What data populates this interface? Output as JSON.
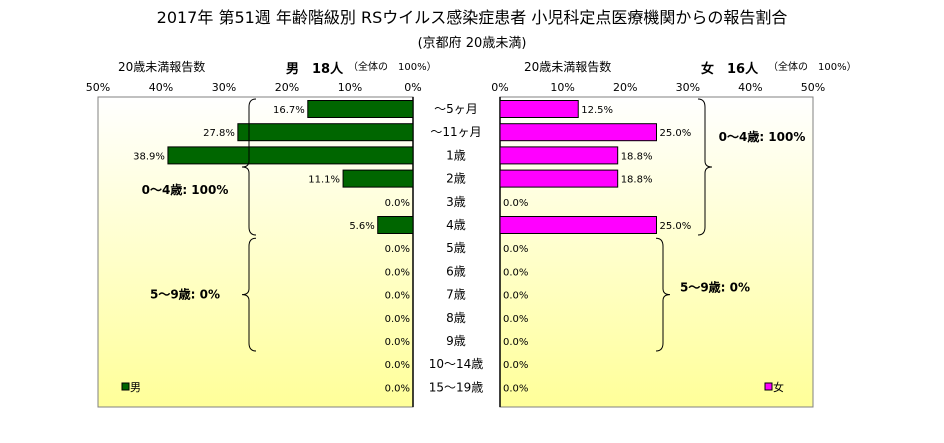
{
  "title": "2017年 第51週 年齢階級別 RSウイルス感染症患者 小児科定点医療機関からの報告割合",
  "subtitle": "(京都府 20歳未満)",
  "male_header": {
    "left": "20歳未満報告数",
    "count": "男　18人",
    "note": "（全体の　100%）"
  },
  "female_header": {
    "left": "20歳未満報告数",
    "count": "女　16人",
    "note": "（全体の　100%）"
  },
  "colors": {
    "male": "#006600",
    "female": "#ff00ff",
    "bg_top": "#ffffff",
    "bg_bottom": "#ffff99"
  },
  "chart_data": [
    {
      "type": "bar",
      "orientation": "horizontal",
      "direction": "right-to-left",
      "series": [
        {
          "name": "男",
          "values": [
            16.7,
            27.8,
            38.9,
            11.1,
            0.0,
            5.6,
            0.0,
            0.0,
            0.0,
            0.0,
            0.0,
            0.0,
            0.0
          ]
        }
      ],
      "categories": [
        "～5ヶ月",
        "～11ヶ月",
        "1歳",
        "2歳",
        "3歳",
        "4歳",
        "5歳",
        "6歳",
        "7歳",
        "8歳",
        "9歳",
        "10～14歳",
        "15～19歳"
      ],
      "value_labels": [
        "16.7%",
        "27.8%",
        "38.9%",
        "11.1%",
        "0.0%",
        "5.6%",
        "0.0%",
        "0.0%",
        "0.0%",
        "0.0%",
        "0.0%",
        "0.0%",
        "0.0%"
      ],
      "xlim": [
        0,
        50
      ],
      "xticks": [
        "0%",
        "10%",
        "20%",
        "30%",
        "40%",
        "50%"
      ],
      "legend": "bottom-left",
      "annotations": [
        "0～4歳: 100%",
        "5～9歳: 0%"
      ]
    },
    {
      "type": "bar",
      "orientation": "horizontal",
      "series": [
        {
          "name": "女",
          "values": [
            12.5,
            25.0,
            18.8,
            18.8,
            0.0,
            25.0,
            0.0,
            0.0,
            0.0,
            0.0,
            0.0,
            0.0,
            0.0
          ]
        }
      ],
      "categories": [
        "～5ヶ月",
        "～11ヶ月",
        "1歳",
        "2歳",
        "3歳",
        "4歳",
        "5歳",
        "6歳",
        "7歳",
        "8歳",
        "9歳",
        "10～14歳",
        "15～19歳"
      ],
      "value_labels": [
        "12.5%",
        "25.0%",
        "18.8%",
        "18.8%",
        "0.0%",
        "25.0%",
        "0.0%",
        "0.0%",
        "0.0%",
        "0.0%",
        "0.0%",
        "0.0%",
        "0.0%"
      ],
      "xlim": [
        0,
        50
      ],
      "xticks": [
        "0%",
        "10%",
        "20%",
        "30%",
        "40%",
        "50%"
      ],
      "legend": "bottom-right",
      "annotations": [
        "0～4歳: 100%",
        "5～9歳: 0%"
      ]
    }
  ]
}
